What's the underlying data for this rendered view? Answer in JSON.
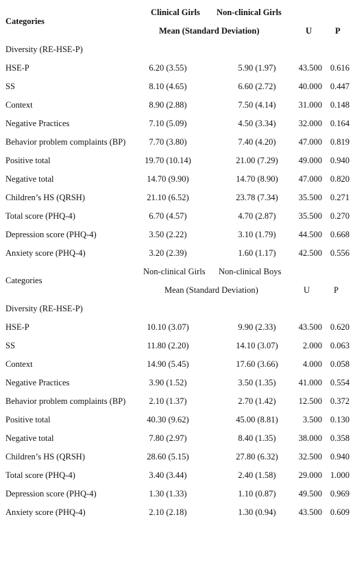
{
  "table1": {
    "header": {
      "categories": "Categories",
      "group1": "Clinical Girls",
      "group2": "Non-clinical Girls",
      "mean_sd": "Mean (Standard Deviation)",
      "u": "U",
      "p": "P"
    },
    "section": "Diversity (RE-HSE-P)",
    "rows": [
      {
        "cat": "HSE-P",
        "m1": "6.20 (3.55)",
        "m2": "5.90 (1.97)",
        "u": "43.500",
        "p": "0.616"
      },
      {
        "cat": "SS",
        "m1": "8.10 (4.65)",
        "m2": "6.60 (2.72)",
        "u": "40.000",
        "p": "0.447"
      },
      {
        "cat": "Context",
        "m1": "8.90 (2.88)",
        "m2": "7.50 (4.14)",
        "u": "31.000",
        "p": "0.148"
      },
      {
        "cat": "Negative Practices",
        "m1": "7.10 (5.09)",
        "m2": "4.50 (3.34)",
        "u": "32.000",
        "p": "0.164"
      },
      {
        "cat": "Behavior problem complaints (BP)",
        "m1": "7.70 (3.80)",
        "m2": "7.40 (4.20)",
        "u": "47.000",
        "p": "0.819"
      },
      {
        "cat": "Positive total",
        "m1": "19.70 (10.14)",
        "m2": "21.00 (7.29)",
        "u": "49.000",
        "p": "0.940"
      },
      {
        "cat": "Negative total",
        "m1": "14.70 (9.90)",
        "m2": "14.70 (8.90)",
        "u": "47.000",
        "p": "0.820"
      },
      {
        "cat": "Children’s HS (QRSH)",
        "m1": "21.10 (6.52)",
        "m2": "23.78 (7.34)",
        "u": "35.500",
        "p": "0.271"
      },
      {
        "cat": "Total score (PHQ-4)",
        "m1": "6.70 (4.57)",
        "m2": "4.70 (2.87)",
        "u": "35.500",
        "p": "0.270"
      },
      {
        "cat": "Depression score (PHQ-4)",
        "m1": "3.50 (2.22)",
        "m2": "3.10 (1.79)",
        "u": "44.500",
        "p": "0.668"
      },
      {
        "cat": "Anxiety score (PHQ-4)",
        "m1": "3.20 (2.39)",
        "m2": "1.60 (1.17)",
        "u": "42.500",
        "p": "0.556"
      }
    ]
  },
  "table2": {
    "header": {
      "categories": "Categories",
      "group1": "Non-clinical Girls",
      "group2": "Non-clinical Boys",
      "mean_sd": "Mean (Standard Deviation)",
      "u": "U",
      "p": "P"
    },
    "section": "Diversity (RE-HSE-P)",
    "rows": [
      {
        "cat": "HSE-P",
        "m1": "10.10 (3.07)",
        "m2": "9.90 (2.33)",
        "u": "43.500",
        "p": "0.620"
      },
      {
        "cat": "SS",
        "m1": "11.80 (2.20)",
        "m2": "14.10 (3.07)",
        "u": "2.000",
        "p": "0.063"
      },
      {
        "cat": "Context",
        "m1": "14.90 (5.45)",
        "m2": "17.60 (3.66)",
        "u": "4.000",
        "p": "0.058"
      },
      {
        "cat": "Negative Practices",
        "m1": "3.90 (1.52)",
        "m2": "3.50 (1.35)",
        "u": "41.000",
        "p": "0.554"
      },
      {
        "cat": "Behavior problem complaints (BP)",
        "m1": "2.10 (1.37)",
        "m2": "2.70 (1.42)",
        "u": "12.500",
        "p": "0.372"
      },
      {
        "cat": "Positive total",
        "m1": "40.30 (9.62)",
        "m2": "45.00 (8.81)",
        "u": "3.500",
        "p": "0.130"
      },
      {
        "cat": "Negative total",
        "m1": "7.80 (2.97)",
        "m2": "8.40 (1.35)",
        "u": "38.000",
        "p": "0.358"
      },
      {
        "cat": "Children’s HS (QRSH)",
        "m1": "28.60 (5.15)",
        "m2": "27.80 (6.32)",
        "u": "32.500",
        "p": "0.940"
      },
      {
        "cat": "Total score (PHQ-4)",
        "m1": "3.40 (3.44)",
        "m2": "2.40 (1.58)",
        "u": "29.000",
        "p": "1.000"
      },
      {
        "cat": "Depression score (PHQ-4)",
        "m1": "1.30 (1.33)",
        "m2": "1.10 (0.87)",
        "u": "49.500",
        "p": "0.969"
      },
      {
        "cat": "Anxiety score (PHQ-4)",
        "m1": "2.10 (2.18)",
        "m2": "1.30 (0.94)",
        "u": "43.500",
        "p": "0.609"
      }
    ]
  }
}
